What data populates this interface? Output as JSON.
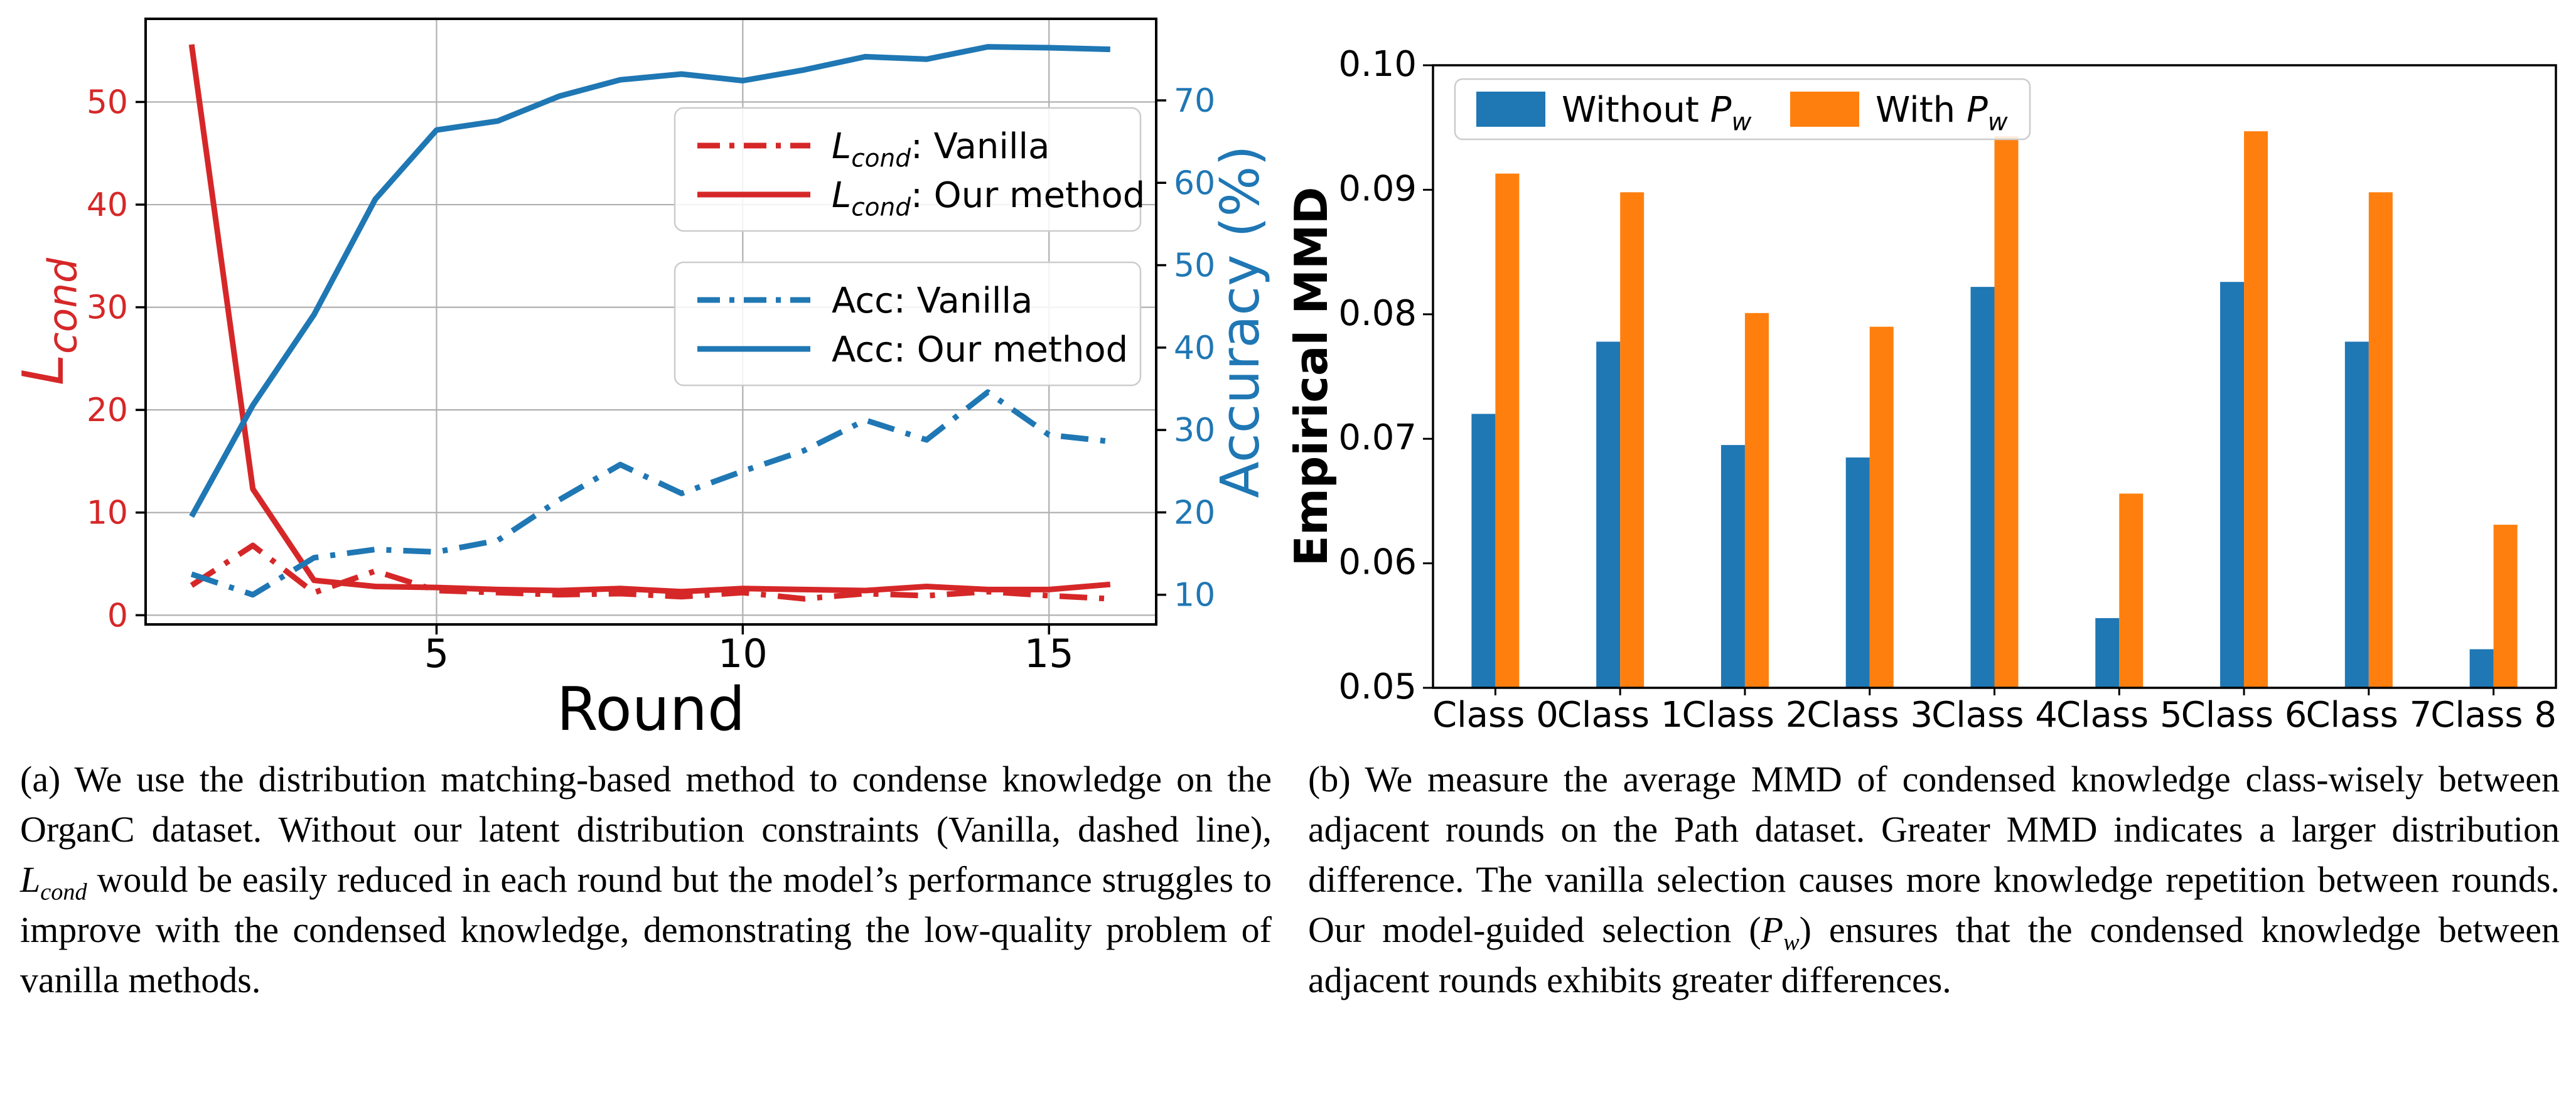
{
  "panels": {
    "a": {
      "caption": "(a) We use the distribution matching-based method to condense knowledge on the OrganC dataset. Without our latent distribution constraints (Vanilla, dashed line), L_{cond} would be easily reduced in each round but the model’s performance struggles to improve with the condensed knowledge, demonstrating the low-quality problem of vanilla methods."
    },
    "b": {
      "caption": "(b) We measure the average MMD of condensed knowledge class-wisely between adjacent rounds on the Path dataset. Greater MMD indicates a larger distribution difference. The vanilla selection causes more knowledge repetition between rounds. Our model-guided selection (P_{w}) ensures that the condensed knowledge between adjacent rounds exhibits greater differences."
    }
  },
  "colors": {
    "red": "#d62728",
    "blue": "#1f77b4",
    "orange": "#ff7f0e",
    "grid": "#b0b0b0",
    "spine": "#000000",
    "legend_edge": "#cccccc",
    "legend_fill": "rgba(255,255,255,0.85)"
  },
  "chart_data": [
    {
      "id": "a",
      "type": "line",
      "title": "",
      "xlabel": "Round",
      "ylabel_left": "L_{cond}",
      "ylabel_right": "Accuracy (%)",
      "x_ticks": [
        5,
        10,
        15
      ],
      "y_left_ticks": [
        0,
        10,
        20,
        30,
        40,
        50
      ],
      "y_right_ticks": [
        10,
        20,
        30,
        40,
        50,
        60,
        70
      ],
      "xlim": [
        0.25,
        16.75
      ],
      "ylim_left": [
        -0.9,
        58.1
      ],
      "ylim_right": [
        6.4,
        79.9
      ],
      "grid": true,
      "x": [
        1,
        2,
        3,
        4,
        5,
        6,
        7,
        8,
        9,
        10,
        11,
        12,
        13,
        14,
        15,
        16
      ],
      "series": [
        {
          "name": "L_{cond}: Vanilla",
          "axis": "left",
          "line": "dashdot",
          "color": "#d62728",
          "values": [
            2.9,
            6.8,
            2.2,
            4.3,
            2.4,
            2.2,
            2.0,
            2.1,
            1.8,
            2.2,
            1.6,
            2.1,
            1.9,
            2.3,
            1.9,
            1.6
          ]
        },
        {
          "name": "L_{cond}: Our method",
          "axis": "left",
          "line": "solid",
          "color": "#d62728",
          "values": [
            55.6,
            12.3,
            3.4,
            2.8,
            2.7,
            2.5,
            2.4,
            2.6,
            2.3,
            2.6,
            2.5,
            2.4,
            2.8,
            2.5,
            2.5,
            3.0
          ]
        },
        {
          "name": "Acc: Vanilla",
          "axis": "right",
          "line": "dashdot",
          "color": "#1f77b4",
          "values": [
            12.5,
            10.0,
            14.5,
            15.5,
            15.2,
            16.6,
            21.5,
            25.8,
            22.3,
            25.0,
            27.5,
            31.2,
            28.8,
            34.6,
            29.4,
            28.6
          ]
        },
        {
          "name": "Acc: Our method",
          "axis": "right",
          "line": "solid",
          "color": "#1f77b4",
          "values": [
            19.5,
            33.0,
            44.0,
            58.0,
            66.4,
            67.5,
            70.5,
            72.5,
            73.2,
            72.4,
            73.7,
            75.3,
            75.0,
            76.5,
            76.4,
            76.2
          ]
        }
      ],
      "legend_groups": [
        [
          0,
          1
        ],
        [
          2,
          3
        ]
      ]
    },
    {
      "id": "b",
      "type": "bar",
      "title": "",
      "xlabel": "",
      "ylabel": "Empirical MMD",
      "ylim": [
        0.05,
        0.1
      ],
      "y_ticks": [
        0.05,
        0.06,
        0.07,
        0.08,
        0.09,
        0.1
      ],
      "grid": false,
      "legend_position": "upper left",
      "categories": [
        "Class 0",
        "Class 1",
        "Class 2",
        "Class 3",
        "Class 4",
        "Class 5",
        "Class 6",
        "Class 7",
        "Class 8"
      ],
      "series": [
        {
          "name": "Without P_{w}",
          "color": "#1f77b4",
          "values": [
            0.072,
            0.0778,
            0.0695,
            0.0685,
            0.0822,
            0.0556,
            0.0826,
            0.0778,
            0.0531
          ]
        },
        {
          "name": "With P_{w}",
          "color": "#ff7f0e",
          "values": [
            0.0913,
            0.0898,
            0.0801,
            0.079,
            0.0943,
            0.0656,
            0.0947,
            0.0898,
            0.0631
          ]
        }
      ]
    }
  ]
}
